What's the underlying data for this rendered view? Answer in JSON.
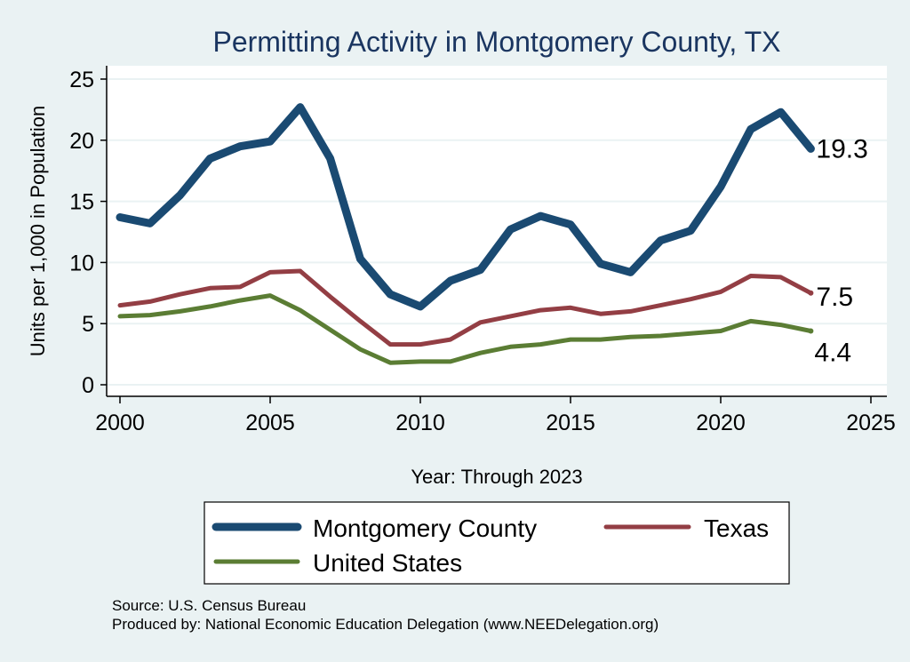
{
  "chart_data": {
    "type": "line",
    "title": "Permitting Activity in Montgomery County, TX",
    "xlabel": "Year: Through 2023",
    "ylabel": "Units per 1,000 in Population",
    "xlim": [
      2000,
      2025
    ],
    "ylim": [
      0,
      25
    ],
    "xticks": [
      2000,
      2005,
      2010,
      2015,
      2020,
      2025
    ],
    "yticks": [
      0,
      5,
      10,
      15,
      20,
      25
    ],
    "grid": true,
    "legend_position": "bottom",
    "x": [
      2000,
      2001,
      2002,
      2003,
      2004,
      2005,
      2006,
      2007,
      2008,
      2009,
      2010,
      2011,
      2012,
      2013,
      2014,
      2015,
      2016,
      2017,
      2018,
      2019,
      2020,
      2021,
      2022,
      2023
    ],
    "series": [
      {
        "name": "Montgomery County",
        "color": "#1a4a72",
        "end_label": "19.3",
        "values": [
          13.7,
          13.2,
          15.5,
          18.5,
          19.5,
          19.9,
          22.7,
          18.5,
          10.3,
          7.4,
          6.4,
          8.5,
          9.4,
          12.7,
          13.8,
          13.1,
          9.9,
          9.2,
          11.8,
          12.6,
          16.2,
          20.9,
          22.3,
          19.3
        ]
      },
      {
        "name": "Texas",
        "color": "#933e44",
        "end_label": "7.5",
        "values": [
          6.5,
          6.8,
          7.4,
          7.9,
          8.0,
          9.2,
          9.3,
          7.2,
          5.2,
          3.3,
          3.3,
          3.7,
          5.1,
          5.6,
          6.1,
          6.3,
          5.8,
          6.0,
          6.5,
          7.0,
          7.6,
          8.9,
          8.8,
          7.5
        ]
      },
      {
        "name": "United States",
        "color": "#5b7d34",
        "end_label": "4.4",
        "values": [
          5.6,
          5.7,
          6.0,
          6.4,
          6.9,
          7.3,
          6.1,
          4.5,
          2.9,
          1.8,
          1.9,
          1.9,
          2.6,
          3.1,
          3.3,
          3.7,
          3.7,
          3.9,
          4.0,
          4.2,
          4.4,
          5.2,
          4.9,
          4.4
        ]
      }
    ]
  },
  "source": "Source: U.S. Census Bureau",
  "producer": "Produced by: National Economic Education Delegation (www.NEEDelegation.org)",
  "colors": {
    "background": "#eaf2f3",
    "plot_background": "#ffffff",
    "title": "#1a3560",
    "grid": "#eaf2f3"
  }
}
